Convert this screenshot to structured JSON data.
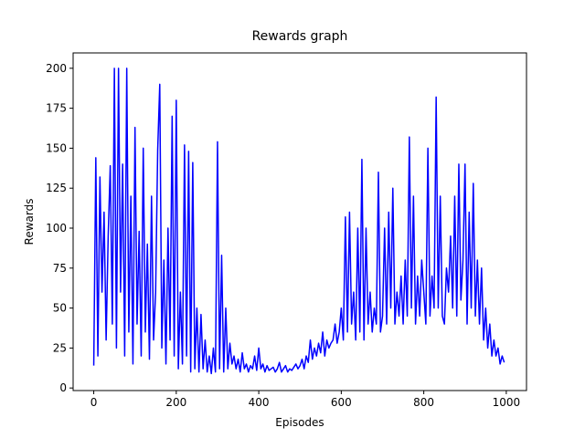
{
  "chart_data": {
    "type": "line",
    "title": "Rewards graph",
    "x_label": "Episodes",
    "y_label": "Rewards",
    "xlim": [
      -50,
      1049
    ],
    "ylim": [
      -1.6,
      209.6
    ],
    "xticks": [
      0,
      200,
      400,
      600,
      800,
      1000
    ],
    "yticks": [
      0,
      25,
      50,
      75,
      100,
      125,
      150,
      175,
      200
    ],
    "grid": false,
    "x": [
      0,
      5,
      10,
      15,
      20,
      25,
      30,
      35,
      40,
      45,
      50,
      55,
      60,
      65,
      70,
      75,
      80,
      85,
      90,
      95,
      100,
      105,
      110,
      115,
      120,
      125,
      130,
      135,
      140,
      145,
      150,
      155,
      160,
      165,
      170,
      175,
      180,
      185,
      190,
      195,
      200,
      205,
      210,
      215,
      220,
      225,
      230,
      235,
      240,
      245,
      250,
      255,
      260,
      265,
      270,
      275,
      280,
      285,
      290,
      295,
      300,
      305,
      310,
      315,
      320,
      325,
      330,
      335,
      340,
      345,
      350,
      355,
      360,
      365,
      370,
      375,
      380,
      385,
      390,
      395,
      400,
      405,
      410,
      415,
      420,
      425,
      430,
      435,
      440,
      445,
      450,
      455,
      460,
      465,
      470,
      475,
      480,
      485,
      490,
      495,
      500,
      505,
      510,
      515,
      520,
      525,
      530,
      535,
      540,
      545,
      550,
      555,
      560,
      565,
      570,
      575,
      580,
      585,
      590,
      595,
      600,
      605,
      610,
      615,
      620,
      625,
      630,
      635,
      640,
      645,
      650,
      655,
      660,
      665,
      670,
      675,
      680,
      685,
      690,
      695,
      700,
      705,
      710,
      715,
      720,
      725,
      730,
      735,
      740,
      745,
      750,
      755,
      760,
      765,
      770,
      775,
      780,
      785,
      790,
      795,
      800,
      805,
      810,
      815,
      820,
      825,
      830,
      835,
      840,
      845,
      850,
      855,
      860,
      865,
      870,
      875,
      880,
      885,
      890,
      895,
      900,
      905,
      910,
      915,
      920,
      925,
      930,
      935,
      940,
      945,
      950,
      955,
      960,
      965,
      970,
      975,
      980,
      985,
      990,
      995
    ],
    "series": [
      {
        "name": "Rewards",
        "color": "#0000ff",
        "values": [
          14,
          144,
          20,
          132,
          60,
          110,
          30,
          95,
          139,
          40,
          200,
          25,
          200,
          60,
          140,
          20,
          200,
          35,
          120,
          15,
          163,
          40,
          98,
          20,
          150,
          35,
          90,
          18,
          120,
          30,
          60,
          149,
          190,
          25,
          80,
          15,
          100,
          30,
          170,
          20,
          180,
          12,
          60,
          15,
          152,
          20,
          148,
          10,
          141,
          12,
          50,
          10,
          46,
          12,
          30,
          10,
          20,
          9,
          25,
          10,
          154,
          12,
          83,
          10,
          50,
          12,
          28,
          15,
          20,
          12,
          18,
          10,
          22,
          12,
          15,
          10,
          14,
          12,
          20,
          11,
          25,
          12,
          15,
          10,
          14,
          11,
          12,
          13,
          10,
          12,
          16,
          10,
          12,
          14,
          10,
          12,
          11,
          13,
          15,
          12,
          14,
          18,
          12,
          20,
          16,
          30,
          18,
          25,
          20,
          28,
          22,
          35,
          20,
          30,
          25,
          28,
          30,
          40,
          28,
          35,
          50,
          30,
          107,
          35,
          110,
          40,
          60,
          30,
          100,
          35,
          143,
          30,
          100,
          40,
          60,
          35,
          50,
          40,
          135,
          35,
          45,
          100,
          40,
          110,
          50,
          125,
          40,
          60,
          45,
          70,
          40,
          80,
          45,
          157,
          50,
          120,
          40,
          70,
          45,
          80,
          60,
          40,
          150,
          45,
          70,
          50,
          182,
          50,
          120,
          45,
          40,
          75,
          60,
          95,
          50,
          120,
          45,
          140,
          55,
          80,
          140,
          40,
          110,
          50,
          128,
          45,
          80,
          40,
          75,
          30,
          50,
          25,
          40,
          20,
          30,
          20,
          25,
          15,
          20,
          16
        ]
      }
    ]
  }
}
